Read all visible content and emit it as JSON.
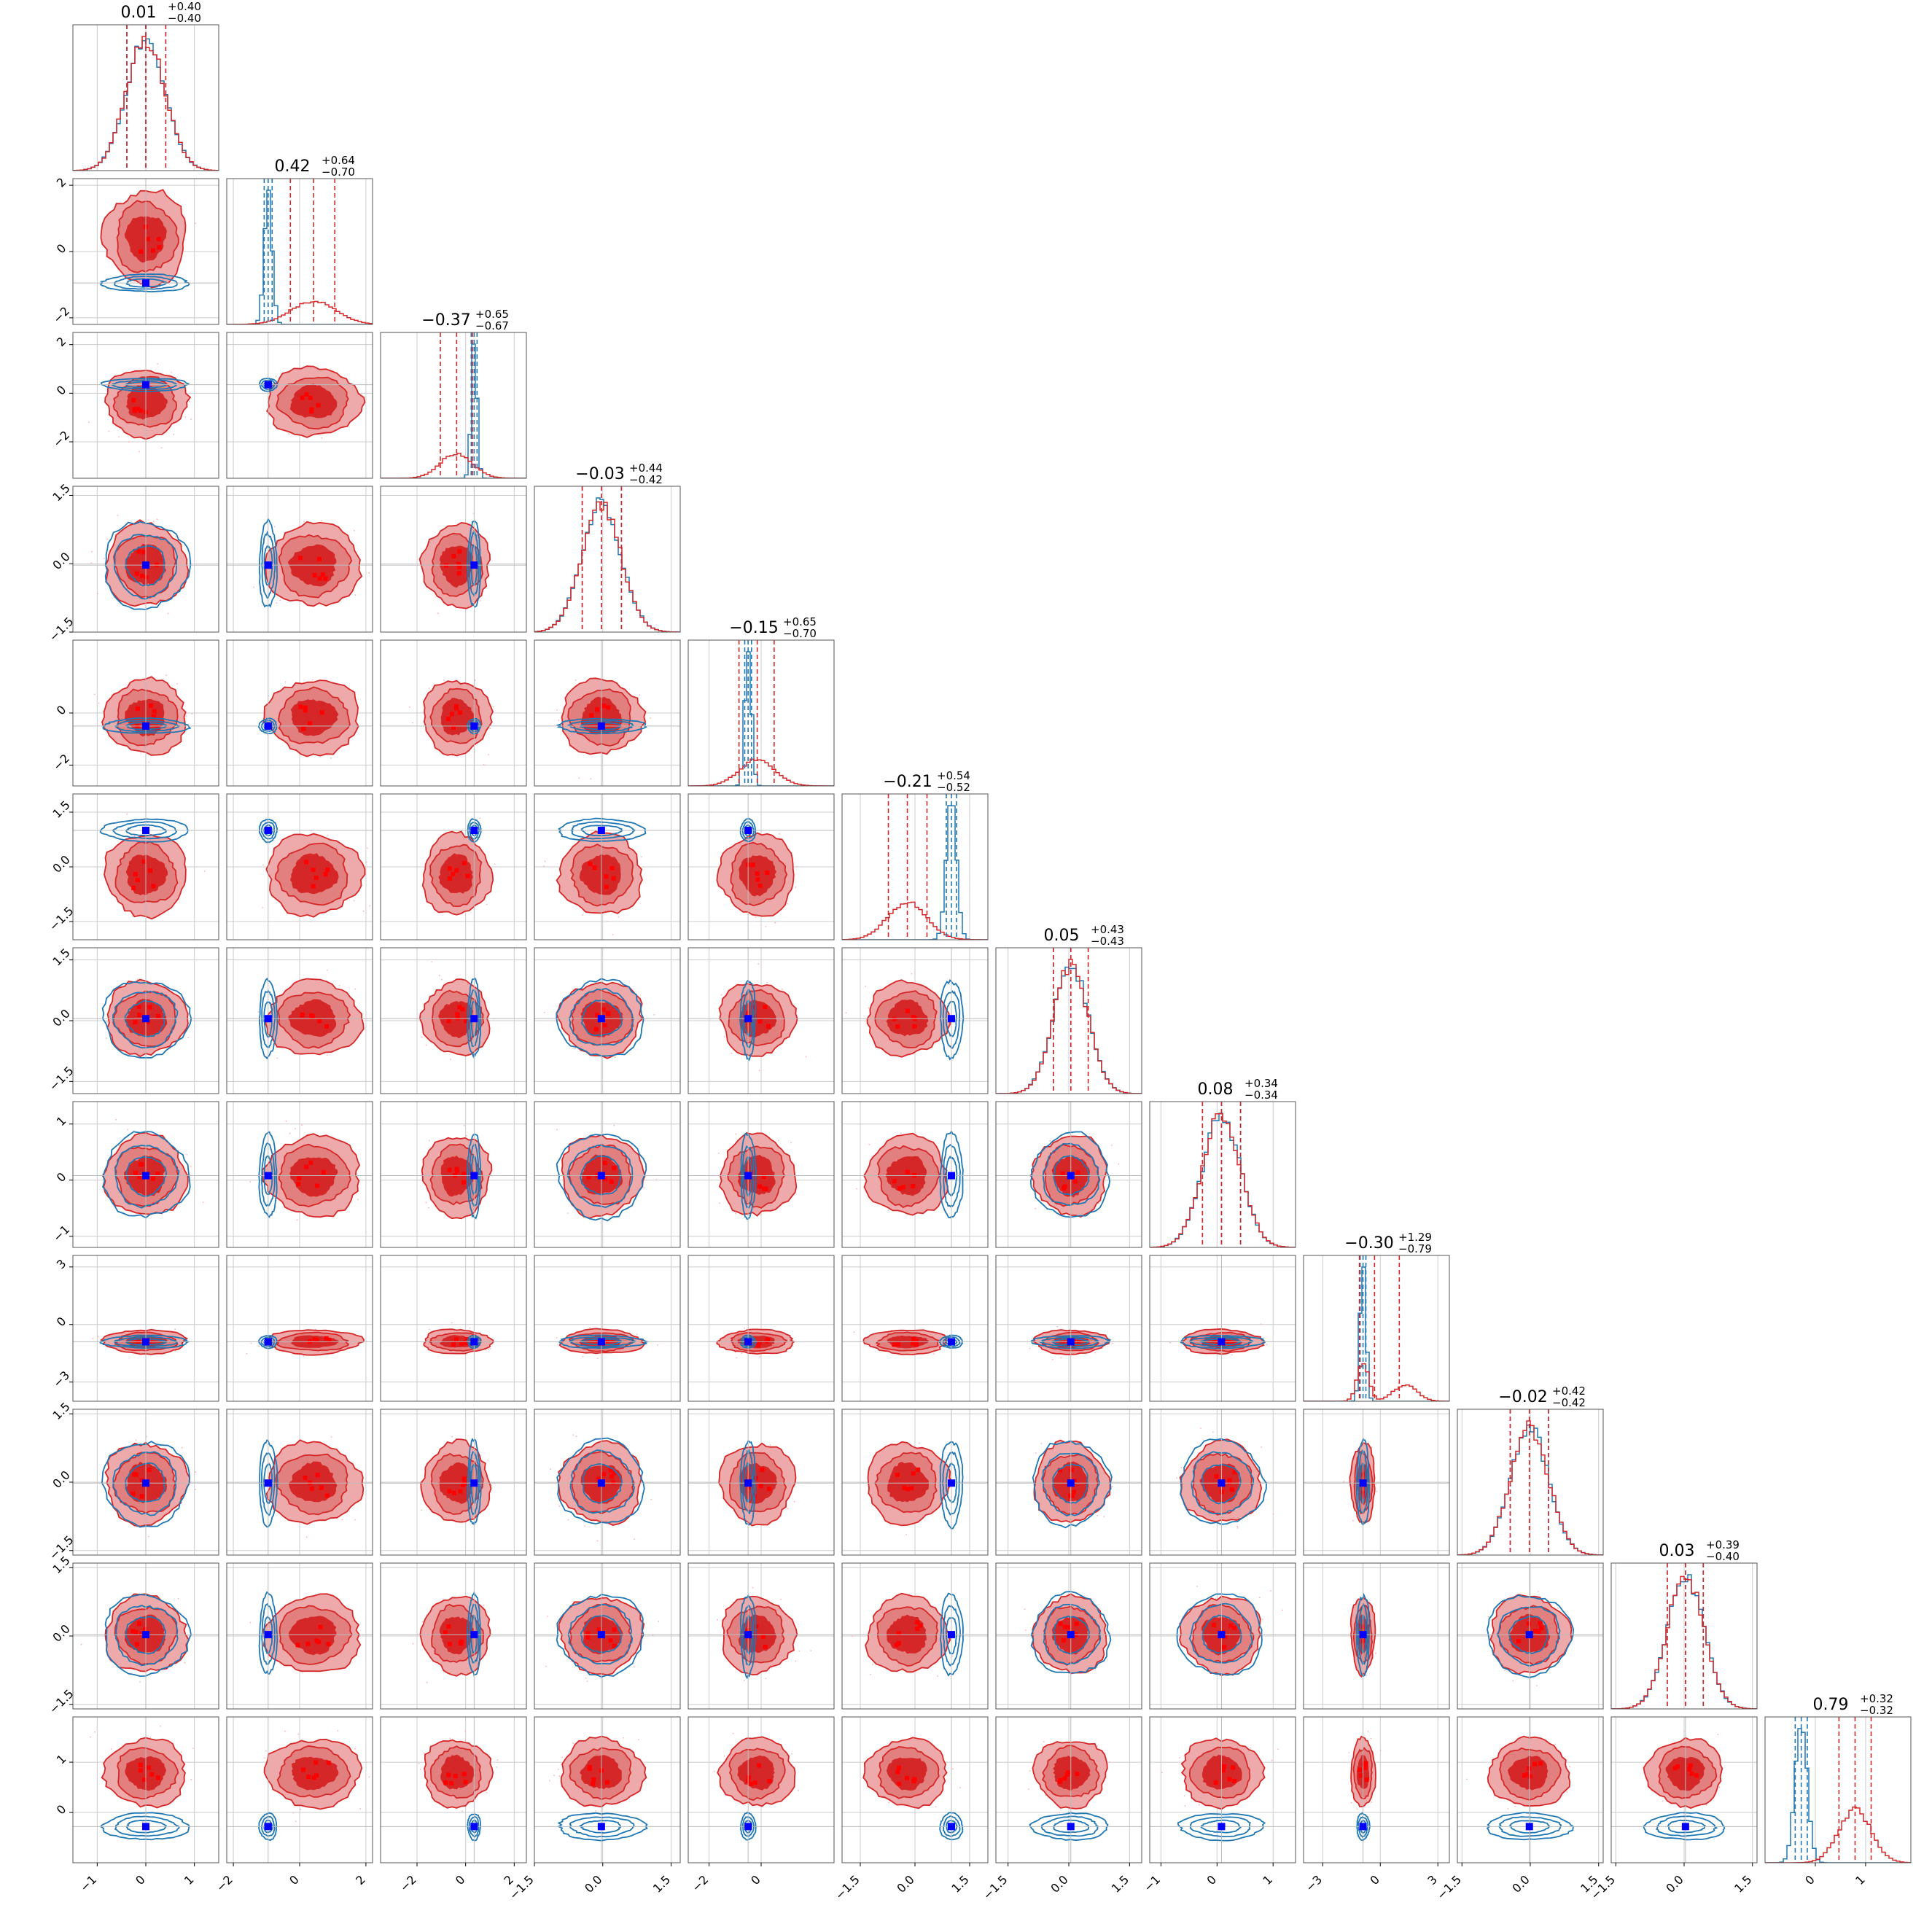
{
  "chart_data": {
    "type": "corner",
    "n_params": 12,
    "colors": {
      "red": "#d62728",
      "red_light": "#eeaaaa",
      "red_mid": "#e28080",
      "blue": "#1f77b4",
      "blue_marker": "#0000ff",
      "grid": "#cccccc",
      "axis": "#555555"
    },
    "params": [
      {
        "median": 0.01,
        "plus": 0.4,
        "minus": 0.4,
        "title": "0.01",
        "title_plus": "+0.40",
        "title_minus": "−0.40",
        "range": [
          -1.5,
          1.5
        ],
        "ticks": [
          -1,
          0,
          1
        ],
        "tick_labels": [
          "−1",
          "0",
          "1"
        ],
        "red": {
          "mean": 0.0,
          "sd": 0.4
        },
        "blue": {
          "mean": 0.0,
          "sd": 0.4
        },
        "truth": 0.0,
        "lines_red": [
          -0.39,
          0.0,
          0.41
        ],
        "lines_blue": [
          -0.39,
          0.0,
          0.41
        ]
      },
      {
        "median": 0.42,
        "plus": 0.64,
        "minus": 0.7,
        "title": "0.42",
        "title_plus": "+0.64",
        "title_minus": "−0.70",
        "range": [
          -2.2,
          2.2
        ],
        "ticks": [
          -2,
          0,
          2
        ],
        "tick_labels": [
          "−2",
          "0",
          "2"
        ],
        "red": {
          "mean": 0.42,
          "sd": 0.68
        },
        "blue": {
          "mean": -0.95,
          "sd": 0.12
        },
        "truth": -0.95,
        "lines_red": [
          -0.28,
          0.42,
          1.06
        ],
        "lines_blue": [
          -1.07,
          -0.95,
          -0.83
        ]
      },
      {
        "median": -0.37,
        "plus": 0.65,
        "minus": 0.67,
        "title": "−0.37",
        "title_plus": "+0.65",
        "title_minus": "−0.67",
        "range": [
          -3.5,
          2.5
        ],
        "ticks": [
          -2,
          0,
          2
        ],
        "tick_labels": [
          "−2",
          "0",
          "2"
        ],
        "red": {
          "mean": -0.37,
          "sd": 0.66
        },
        "blue": {
          "mean": 0.35,
          "sd": 0.12
        },
        "truth": 0.35,
        "lines_red": [
          -1.04,
          -0.37,
          0.28
        ],
        "lines_blue": [
          0.23,
          0.35,
          0.47
        ]
      },
      {
        "median": -0.03,
        "plus": 0.44,
        "minus": 0.42,
        "title": "−0.03",
        "title_plus": "+0.44",
        "title_minus": "−0.42",
        "range": [
          -1.5,
          1.7
        ],
        "ticks": [
          -1.5,
          0,
          1.5
        ],
        "tick_labels": [
          "−1.5",
          "0.0",
          "1.5"
        ],
        "red": {
          "mean": -0.03,
          "sd": 0.43
        },
        "blue": {
          "mean": -0.03,
          "sd": 0.43
        },
        "truth": -0.03,
        "lines_red": [
          -0.45,
          -0.03,
          0.41
        ],
        "lines_blue": [
          -0.45,
          -0.03,
          0.41
        ]
      },
      {
        "median": -0.15,
        "plus": 0.65,
        "minus": 0.7,
        "title": "−0.15",
        "title_plus": "+0.65",
        "title_minus": "−0.70",
        "range": [
          -2.8,
          2.8
        ],
        "ticks": [
          -2,
          0
        ],
        "tick_labels": [
          "−2",
          "0"
        ],
        "red": {
          "mean": -0.15,
          "sd": 0.68
        },
        "blue": {
          "mean": -0.5,
          "sd": 0.13
        },
        "truth": -0.5,
        "lines_red": [
          -0.85,
          -0.15,
          0.5
        ],
        "lines_blue": [
          -0.63,
          -0.5,
          -0.37
        ]
      },
      {
        "median": -0.21,
        "plus": 0.54,
        "minus": 0.52,
        "title": "−0.21",
        "title_plus": "+0.54",
        "title_minus": "−0.52",
        "range": [
          -2.0,
          2.0
        ],
        "ticks": [
          -1.5,
          0,
          1.5
        ],
        "tick_labels": [
          "−1.5",
          "0.0",
          "1.5"
        ],
        "red": {
          "mean": -0.21,
          "sd": 0.53
        },
        "blue": {
          "mean": 1.0,
          "sd": 0.14
        },
        "truth": 1.0,
        "lines_red": [
          -0.73,
          -0.21,
          0.33
        ],
        "lines_blue": [
          0.86,
          1.0,
          1.14
        ]
      },
      {
        "median": 0.05,
        "plus": 0.43,
        "minus": 0.43,
        "title": "0.05",
        "title_plus": "+0.43",
        "title_minus": "−0.43",
        "range": [
          -1.8,
          1.8
        ],
        "ticks": [
          -1.5,
          0,
          1.5
        ],
        "tick_labels": [
          "−1.5",
          "0.0",
          "1.5"
        ],
        "red": {
          "mean": 0.05,
          "sd": 0.43
        },
        "blue": {
          "mean": 0.05,
          "sd": 0.43
        },
        "truth": 0.05,
        "lines_red": [
          -0.38,
          0.05,
          0.48
        ],
        "lines_blue": [
          -0.38,
          0.05,
          0.48
        ]
      },
      {
        "median": 0.08,
        "plus": 0.34,
        "minus": 0.34,
        "title": "0.08",
        "title_plus": "+0.34",
        "title_minus": "−0.34",
        "range": [
          -1.2,
          1.4
        ],
        "ticks": [
          -1,
          0,
          1
        ],
        "tick_labels": [
          "−1",
          "0",
          "1"
        ],
        "red": {
          "mean": 0.08,
          "sd": 0.34
        },
        "blue": {
          "mean": 0.08,
          "sd": 0.34
        },
        "truth": 0.08,
        "lines_red": [
          -0.26,
          0.08,
          0.42
        ],
        "lines_blue": [
          -0.26,
          0.08,
          0.42
        ]
      },
      {
        "median": -0.3,
        "plus": 1.29,
        "minus": 0.79,
        "title": "−0.30",
        "title_plus": "+1.29",
        "title_minus": "−0.79",
        "range": [
          -4.0,
          3.6
        ],
        "ticks": [
          -3,
          0,
          3
        ],
        "tick_labels": [
          "−3",
          "0",
          "3"
        ],
        "red": {
          "mean": -0.9,
          "sd": 0.3,
          "mean2": 1.3,
          "sd2": 0.6,
          "w2": 0.3
        },
        "blue": {
          "mean": -0.9,
          "sd": 0.15
        },
        "truth": -0.9,
        "lines_red": [
          -1.09,
          -0.3,
          0.99
        ],
        "lines_blue": [
          -1.05,
          -0.9,
          -0.75
        ]
      },
      {
        "median": -0.02,
        "plus": 0.42,
        "minus": 0.42,
        "title": "−0.02",
        "title_plus": "+0.42",
        "title_minus": "−0.42",
        "range": [
          -1.6,
          1.6
        ],
        "ticks": [
          -1.5,
          0,
          1.5
        ],
        "tick_labels": [
          "−1.5",
          "0.0",
          "1.5"
        ],
        "red": {
          "mean": -0.02,
          "sd": 0.42
        },
        "blue": {
          "mean": -0.02,
          "sd": 0.42
        },
        "truth": -0.02,
        "lines_red": [
          -0.44,
          -0.02,
          0.4
        ],
        "lines_blue": [
          -0.44,
          -0.02,
          0.4
        ]
      },
      {
        "median": 0.03,
        "plus": 0.39,
        "minus": 0.4,
        "title": "0.03",
        "title_plus": "+0.39",
        "title_minus": "−0.40",
        "range": [
          -1.6,
          1.6
        ],
        "ticks": [
          -1.5,
          0,
          1.5
        ],
        "tick_labels": [
          "−1.5",
          "0.0",
          "1.5"
        ],
        "red": {
          "mean": 0.03,
          "sd": 0.4
        },
        "blue": {
          "mean": 0.03,
          "sd": 0.4
        },
        "truth": 0.03,
        "lines_red": [
          -0.37,
          0.03,
          0.42
        ],
        "lines_blue": [
          -0.37,
          0.03,
          0.42
        ]
      },
      {
        "median": 0.79,
        "plus": 0.32,
        "minus": 0.32,
        "title": "0.79",
        "title_plus": "+0.32",
        "title_minus": "−0.32",
        "range": [
          -1.0,
          1.9
        ],
        "ticks": [
          0,
          1
        ],
        "tick_labels": [
          "0",
          "1"
        ],
        "red": {
          "mean": 0.79,
          "sd": 0.32
        },
        "blue": {
          "mean": -0.28,
          "sd": 0.12
        },
        "truth": -0.28,
        "lines_red": [
          0.47,
          0.79,
          1.11
        ],
        "lines_blue": [
          -0.4,
          -0.28,
          -0.16
        ]
      }
    ],
    "wide_params_offdiag_shape": "ellipse-wide",
    "notes": ""
  }
}
